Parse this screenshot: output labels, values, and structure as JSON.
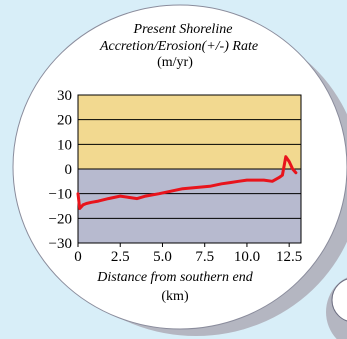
{
  "colors": {
    "background": "#d8eef8",
    "disc": "#ffffff",
    "disc_shadow": "#b4b6c1",
    "erosion_band": "#b7bacf",
    "accretion_band": "#f2d990",
    "line": "#e8141c"
  },
  "chart_data": {
    "type": "line",
    "title_line1": "Present Shoreline",
    "title_line2": "Accretion/Erosion(+/-) Rate",
    "units": "(m/yr)",
    "xlabel": "Distance from southern end",
    "xunits": "(km)",
    "xlim": [
      0,
      13.2
    ],
    "ylim": [
      -30,
      30
    ],
    "xticks": [
      "0",
      "2.5",
      "5.0",
      "7.5",
      "10.0",
      "12.5"
    ],
    "xtick_values": [
      0,
      2.5,
      5.0,
      7.5,
      10.0,
      12.5
    ],
    "yticks": [
      "30",
      "20",
      "10",
      "0",
      "−10",
      "−20",
      "−30"
    ],
    "ytick_values": [
      30,
      20,
      10,
      0,
      -10,
      -20,
      -30
    ],
    "grid": true,
    "bands": [
      {
        "from": 0,
        "to": 30,
        "color": "#f2d990"
      },
      {
        "from": -30,
        "to": 0,
        "color": "#b7bacf"
      }
    ],
    "series": [
      {
        "color": "#e8141c",
        "x": [
          0,
          0.1,
          0.3,
          0.5,
          0.8,
          1.2,
          1.8,
          2.5,
          3.0,
          3.5,
          4.0,
          4.8,
          5.5,
          6.2,
          7.0,
          7.8,
          8.5,
          9.0,
          9.5,
          10.0,
          10.5,
          11.0,
          11.5,
          11.9,
          12.1,
          12.3,
          12.5,
          12.7,
          12.9
        ],
        "y": [
          -10,
          -16,
          -14.5,
          -14,
          -13.5,
          -13,
          -12,
          -11,
          -11.5,
          -12,
          -11,
          -10,
          -9,
          -8,
          -7.5,
          -7,
          -6,
          -5.5,
          -5,
          -4.5,
          -4.5,
          -4.5,
          -5,
          -3.5,
          -2.5,
          5,
          3,
          0,
          -1.5
        ]
      }
    ]
  }
}
